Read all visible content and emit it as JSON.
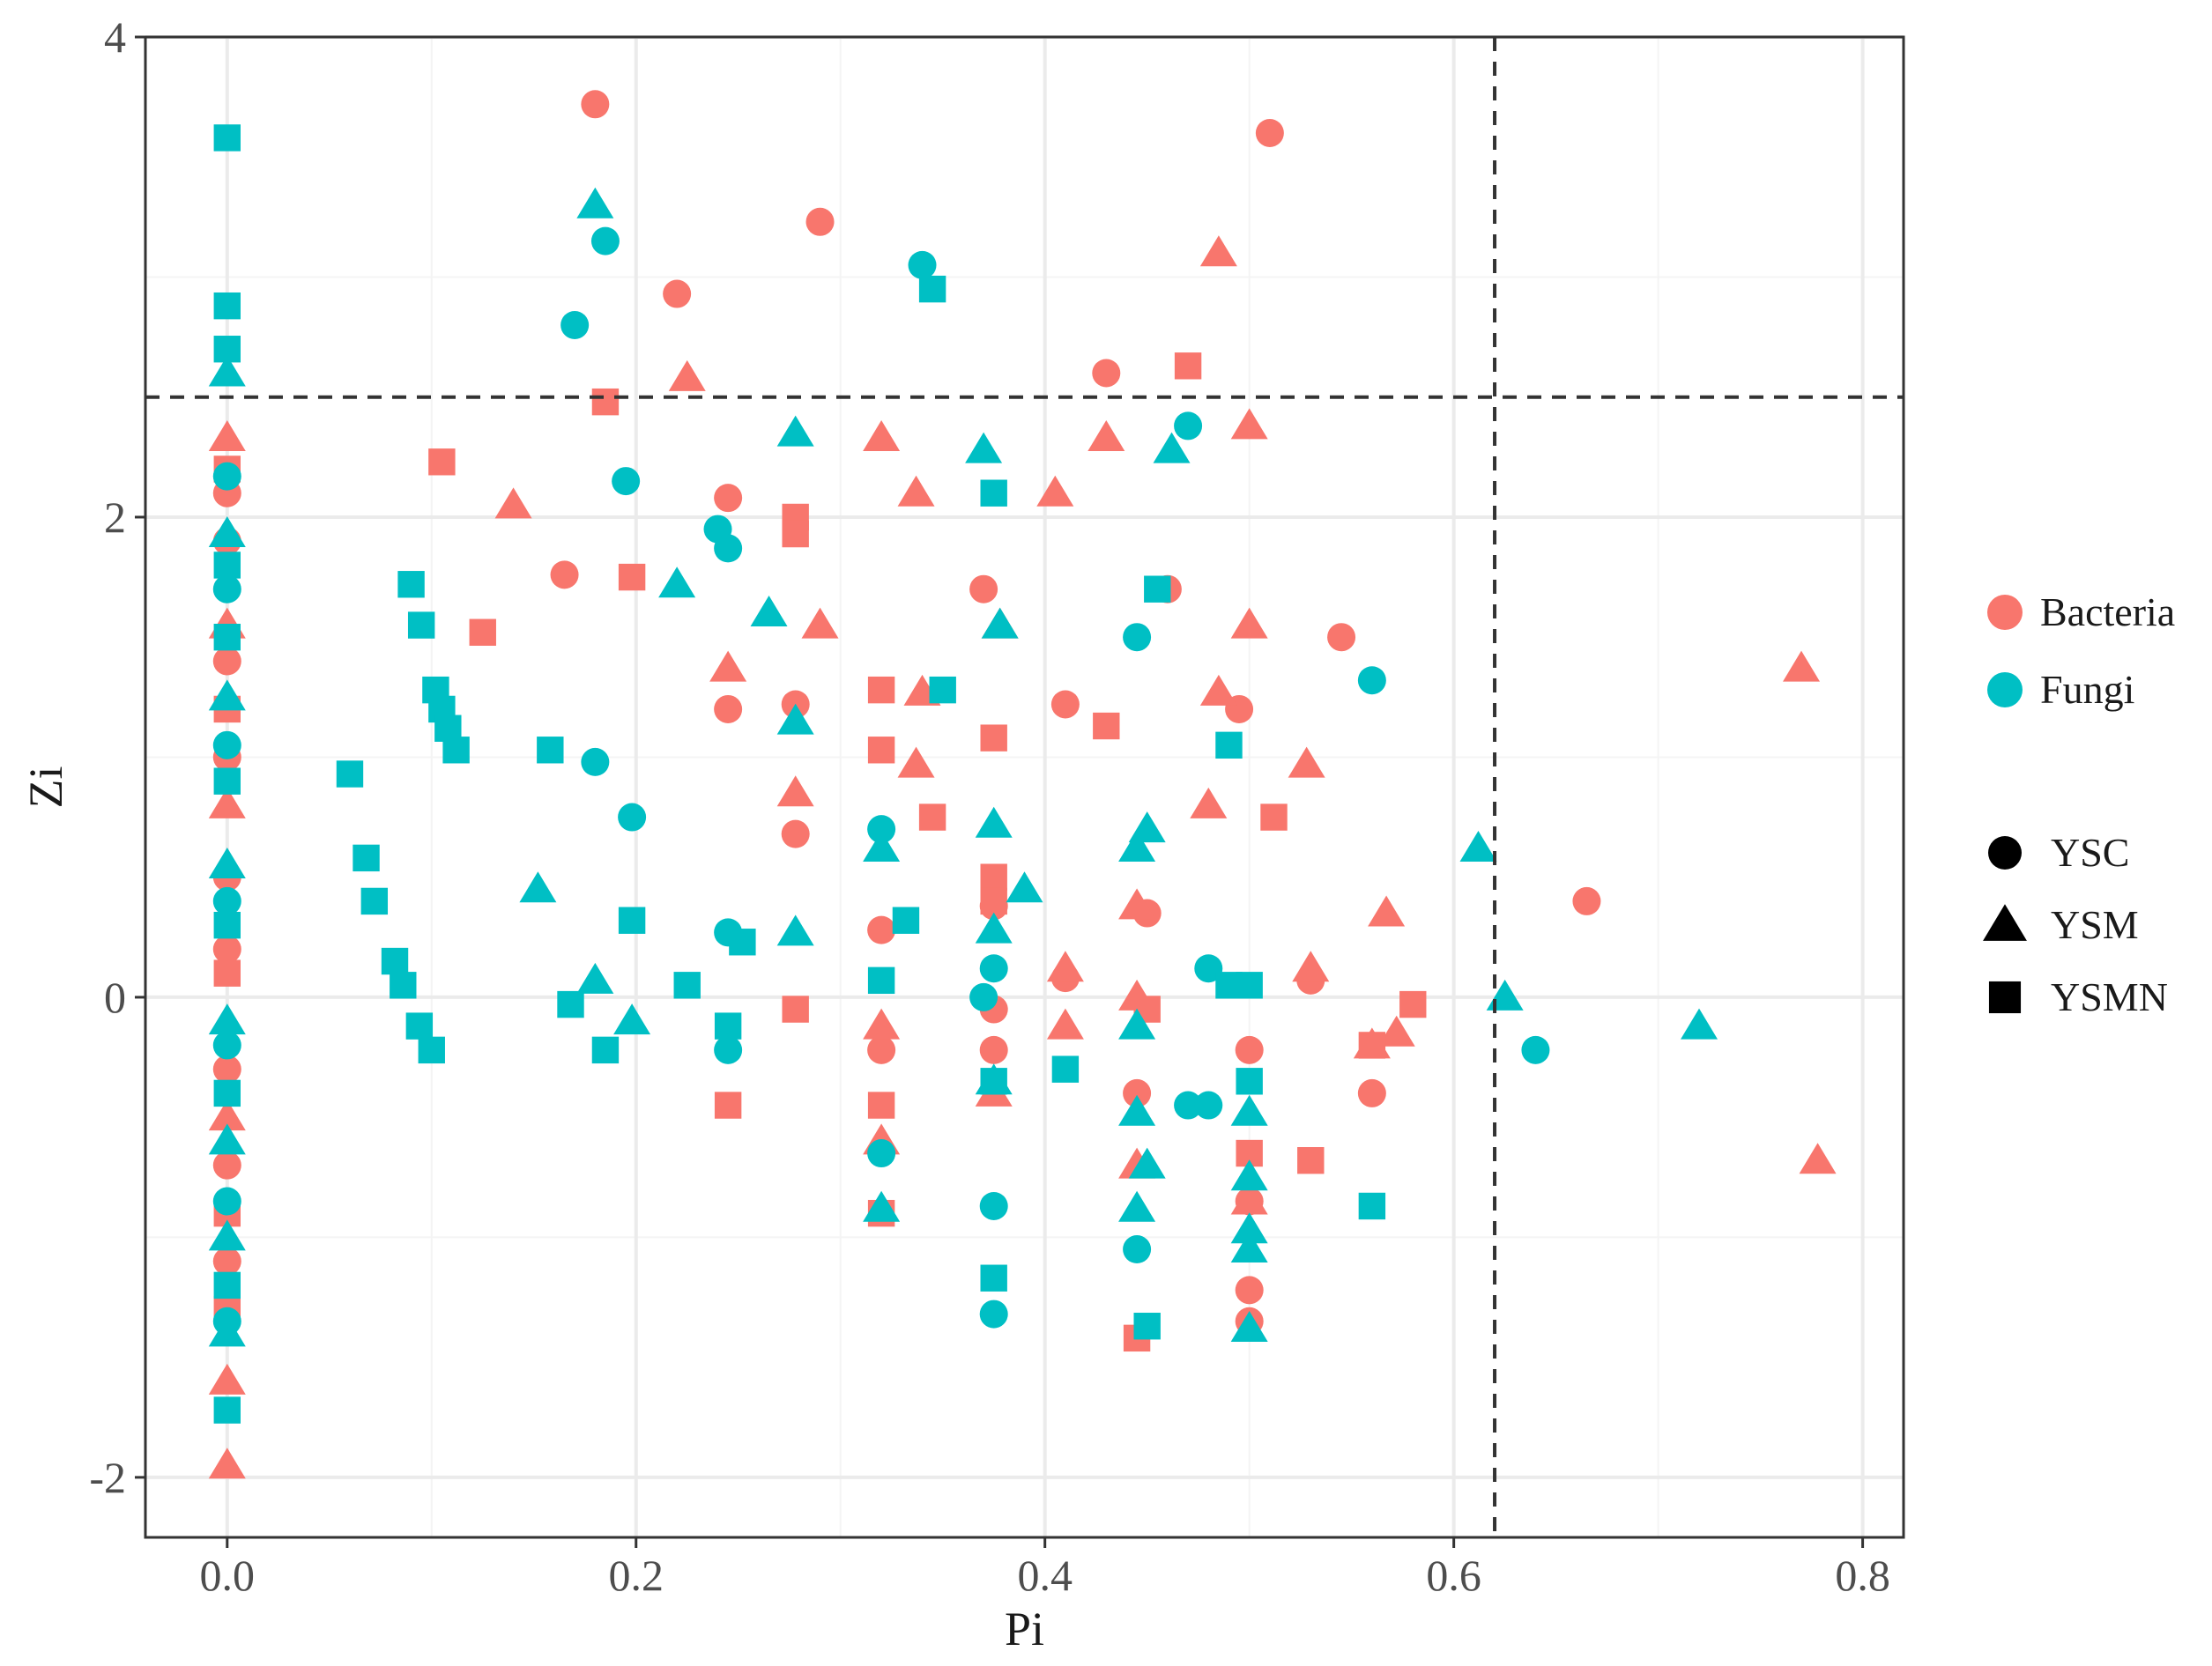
{
  "chart_data": {
    "type": "scatter",
    "xlabel": "Pi",
    "ylabel": "Zi",
    "xlim": [
      -0.04,
      0.82
    ],
    "ylim": [
      -2.25,
      4.0
    ],
    "x_ticks": [
      0.0,
      0.2,
      0.4,
      0.6,
      0.8
    ],
    "x_tick_labels": [
      "0.0",
      "0.2",
      "0.4",
      "0.6",
      "0.8"
    ],
    "y_ticks": [
      -2,
      0,
      2,
      4
    ],
    "y_tick_labels": [
      "-2",
      "0",
      "2",
      "4"
    ],
    "grid": true,
    "reference_lines": {
      "x": 0.62,
      "y": 2.5
    },
    "legend_position": "right",
    "color_legend": [
      {
        "name": "Bacteria",
        "color": "#F8766D"
      },
      {
        "name": "Fungi",
        "color": "#00BFC4"
      }
    ],
    "shape_legend": [
      {
        "name": "YSC",
        "shape": "circle"
      },
      {
        "name": "YSM",
        "shape": "triangle"
      },
      {
        "name": "YSMN",
        "shape": "square"
      }
    ],
    "series": [
      {
        "group": "Bacteria",
        "shape": "YSC",
        "points": [
          [
            0.18,
            3.72
          ],
          [
            0.51,
            3.6
          ],
          [
            0.29,
            3.23
          ],
          [
            0.22,
            2.93
          ],
          [
            0.43,
            2.6
          ],
          [
            0.245,
            2.08
          ],
          [
            0.165,
            1.76
          ],
          [
            0.37,
            1.7
          ],
          [
            0.46,
            1.7
          ],
          [
            0.545,
            1.5
          ],
          [
            0.278,
            1.22
          ],
          [
            0.41,
            1.22
          ],
          [
            0.245,
            1.2
          ],
          [
            0.495,
            1.2
          ],
          [
            0.278,
            0.68
          ],
          [
            0.665,
            0.4
          ],
          [
            0.45,
            0.35
          ],
          [
            0.375,
            0.38
          ],
          [
            0.32,
            0.28
          ],
          [
            0.41,
            0.08
          ],
          [
            0.53,
            0.07
          ],
          [
            0.375,
            -0.05
          ],
          [
            0.32,
            -0.22
          ],
          [
            0.375,
            -0.22
          ],
          [
            0.5,
            -0.22
          ],
          [
            0.56,
            -0.4
          ],
          [
            0.445,
            -0.4
          ],
          [
            0.5,
            -0.85
          ],
          [
            0.5,
            -1.22
          ],
          [
            0.5,
            -1.35
          ],
          [
            0.0,
            2.1
          ],
          [
            0.0,
            1.9
          ],
          [
            0.0,
            1.4
          ],
          [
            0.0,
            1.0
          ],
          [
            0.0,
            0.5
          ],
          [
            0.0,
            0.2
          ],
          [
            0.0,
            -0.3
          ],
          [
            0.0,
            -0.7
          ],
          [
            0.0,
            -1.1
          ]
        ]
      },
      {
        "group": "Bacteria",
        "shape": "YSM",
        "points": [
          [
            0.485,
            3.1
          ],
          [
            0.225,
            2.58
          ],
          [
            0.5,
            2.38
          ],
          [
            0.43,
            2.33
          ],
          [
            0.32,
            2.33
          ],
          [
            0.14,
            2.05
          ],
          [
            0.337,
            2.1
          ],
          [
            0.405,
            2.1
          ],
          [
            0.5,
            1.55
          ],
          [
            0.29,
            1.55
          ],
          [
            0.378,
            1.55
          ],
          [
            0.245,
            1.37
          ],
          [
            0.34,
            1.27
          ],
          [
            0.485,
            1.27
          ],
          [
            0.77,
            1.37
          ],
          [
            0.528,
            0.97
          ],
          [
            0.337,
            0.97
          ],
          [
            0.278,
            0.85
          ],
          [
            0.48,
            0.8
          ],
          [
            0.567,
            0.35
          ],
          [
            0.445,
            0.38
          ],
          [
            0.41,
            0.12
          ],
          [
            0.53,
            0.12
          ],
          [
            0.445,
            0.0
          ],
          [
            0.572,
            -0.15
          ],
          [
            0.56,
            -0.2
          ],
          [
            0.32,
            -0.12
          ],
          [
            0.41,
            -0.12
          ],
          [
            0.375,
            -0.4
          ],
          [
            0.445,
            -0.7
          ],
          [
            0.32,
            -0.6
          ],
          [
            0.5,
            -0.85
          ],
          [
            0.778,
            -0.68
          ],
          [
            0.0,
            2.33
          ],
          [
            0.0,
            -1.6
          ],
          [
            0.0,
            -1.95
          ],
          [
            0.0,
            1.55
          ],
          [
            0.0,
            0.8
          ],
          [
            0.0,
            -0.5
          ]
        ]
      },
      {
        "group": "Bacteria",
        "shape": "YSMN",
        "points": [
          [
            0.47,
            2.63
          ],
          [
            0.185,
            2.48
          ],
          [
            0.105,
            2.23
          ],
          [
            0.278,
            2.0
          ],
          [
            0.278,
            1.93
          ],
          [
            0.198,
            1.75
          ],
          [
            0.125,
            1.52
          ],
          [
            0.32,
            1.28
          ],
          [
            0.43,
            1.13
          ],
          [
            0.375,
            1.08
          ],
          [
            0.32,
            1.03
          ],
          [
            0.345,
            0.75
          ],
          [
            0.512,
            0.75
          ],
          [
            0.375,
            0.5
          ],
          [
            0.375,
            0.4
          ],
          [
            0.58,
            -0.03
          ],
          [
            0.45,
            -0.05
          ],
          [
            0.278,
            -0.05
          ],
          [
            0.56,
            -0.2
          ],
          [
            0.32,
            -0.45
          ],
          [
            0.245,
            -0.45
          ],
          [
            0.5,
            -0.65
          ],
          [
            0.53,
            -0.68
          ],
          [
            0.32,
            -0.9
          ],
          [
            0.445,
            -1.42
          ],
          [
            0.0,
            2.2
          ],
          [
            0.0,
            1.2
          ],
          [
            0.0,
            0.1
          ],
          [
            0.0,
            -0.9
          ],
          [
            0.0,
            -1.3
          ]
        ]
      },
      {
        "group": "Fungi",
        "shape": "YSC",
        "points": [
          [
            0.185,
            3.15
          ],
          [
            0.34,
            3.05
          ],
          [
            0.17,
            2.8
          ],
          [
            0.47,
            2.38
          ],
          [
            0.195,
            2.15
          ],
          [
            0.24,
            1.95
          ],
          [
            0.245,
            1.87
          ],
          [
            0.445,
            1.5
          ],
          [
            0.56,
            1.32
          ],
          [
            0.18,
            0.98
          ],
          [
            0.198,
            0.75
          ],
          [
            0.32,
            0.7
          ],
          [
            0.245,
            0.27
          ],
          [
            0.48,
            0.12
          ],
          [
            0.375,
            0.12
          ],
          [
            0.37,
            0.0
          ],
          [
            0.245,
            -0.22
          ],
          [
            0.64,
            -0.22
          ],
          [
            0.47,
            -0.45
          ],
          [
            0.48,
            -0.45
          ],
          [
            0.32,
            -0.65
          ],
          [
            0.375,
            -0.87
          ],
          [
            0.445,
            -1.05
          ],
          [
            0.375,
            -1.32
          ],
          [
            0.0,
            2.17
          ],
          [
            0.0,
            1.7
          ],
          [
            0.0,
            1.05
          ],
          [
            0.0,
            0.4
          ],
          [
            0.0,
            -0.2
          ],
          [
            0.0,
            -0.85
          ],
          [
            0.0,
            -1.35
          ]
        ]
      },
      {
        "group": "Fungi",
        "shape": "YSM",
        "points": [
          [
            0.18,
            3.3
          ],
          [
            0.278,
            2.35
          ],
          [
            0.37,
            2.28
          ],
          [
            0.462,
            2.28
          ],
          [
            0.22,
            1.72
          ],
          [
            0.265,
            1.6
          ],
          [
            0.378,
            1.55
          ],
          [
            0.278,
            1.15
          ],
          [
            0.375,
            0.72
          ],
          [
            0.45,
            0.7
          ],
          [
            0.445,
            0.62
          ],
          [
            0.32,
            0.62
          ],
          [
            0.612,
            0.62
          ],
          [
            0.39,
            0.45
          ],
          [
            0.152,
            0.45
          ],
          [
            0.375,
            0.28
          ],
          [
            0.278,
            0.27
          ],
          [
            0.18,
            0.07
          ],
          [
            0.198,
            -0.1
          ],
          [
            0.625,
            0.0
          ],
          [
            0.72,
            -0.12
          ],
          [
            0.445,
            -0.12
          ],
          [
            0.375,
            -0.35
          ],
          [
            0.5,
            -0.48
          ],
          [
            0.445,
            -0.48
          ],
          [
            0.45,
            -0.7
          ],
          [
            0.5,
            -0.75
          ],
          [
            0.5,
            -0.97
          ],
          [
            0.5,
            -1.05
          ],
          [
            0.32,
            -0.88
          ],
          [
            0.445,
            -0.88
          ],
          [
            0.5,
            -1.38
          ],
          [
            0.0,
            2.6
          ],
          [
            0.0,
            1.93
          ],
          [
            0.0,
            1.25
          ],
          [
            0.0,
            0.55
          ],
          [
            0.0,
            -0.1
          ],
          [
            0.0,
            -0.6
          ],
          [
            0.0,
            -1.0
          ],
          [
            0.0,
            -1.4
          ]
        ]
      },
      {
        "group": "Fungi",
        "shape": "YSMN",
        "points": [
          [
            0.345,
            2.95
          ],
          [
            0.375,
            2.1
          ],
          [
            0.455,
            1.7
          ],
          [
            0.09,
            1.72
          ],
          [
            0.095,
            1.55
          ],
          [
            0.35,
            1.28
          ],
          [
            0.102,
            1.28
          ],
          [
            0.105,
            1.2
          ],
          [
            0.108,
            1.12
          ],
          [
            0.112,
            1.03
          ],
          [
            0.158,
            1.03
          ],
          [
            0.49,
            1.05
          ],
          [
            0.06,
            0.93
          ],
          [
            0.068,
            0.58
          ],
          [
            0.072,
            0.4
          ],
          [
            0.198,
            0.32
          ],
          [
            0.332,
            0.32
          ],
          [
            0.082,
            0.15
          ],
          [
            0.086,
            0.05
          ],
          [
            0.225,
            0.05
          ],
          [
            0.252,
            0.23
          ],
          [
            0.32,
            0.07
          ],
          [
            0.49,
            0.05
          ],
          [
            0.5,
            0.05
          ],
          [
            0.168,
            -0.03
          ],
          [
            0.094,
            -0.12
          ],
          [
            0.1,
            -0.22
          ],
          [
            0.185,
            -0.22
          ],
          [
            0.245,
            -0.12
          ],
          [
            0.41,
            -0.3
          ],
          [
            0.375,
            -0.35
          ],
          [
            0.5,
            -0.35
          ],
          [
            0.56,
            -0.87
          ],
          [
            0.375,
            -1.17
          ],
          [
            0.45,
            -1.37
          ],
          [
            0.0,
            3.58
          ],
          [
            0.0,
            2.88
          ],
          [
            0.0,
            2.7
          ],
          [
            0.0,
            1.8
          ],
          [
            0.0,
            1.5
          ],
          [
            0.0,
            0.9
          ],
          [
            0.0,
            0.3
          ],
          [
            0.0,
            -0.4
          ],
          [
            0.0,
            -1.2
          ],
          [
            0.0,
            -1.72
          ]
        ]
      }
    ]
  }
}
